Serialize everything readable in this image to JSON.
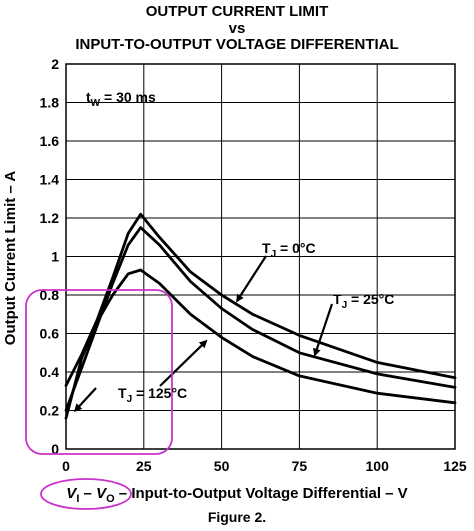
{
  "title": {
    "line1": "OUTPUT CURRENT LIMIT",
    "line2": "vs",
    "line3": "INPUT-TO-OUTPUT VOLTAGE DIFFERENTIAL"
  },
  "caption": "Figure 2.",
  "chart_data": {
    "type": "line",
    "xlabel": {
      "main_italic": "V",
      "sub_i": "I",
      "sep": " – ",
      "main_italic2": "V",
      "sub_o": "O",
      "rest": " – Input-to-Output Voltage Differential – V"
    },
    "ylabel": "Output Current Limit – A",
    "xlim": [
      0,
      125
    ],
    "ylim": [
      0,
      2
    ],
    "xticks": [
      "0",
      "25",
      "50",
      "75",
      "100",
      "125"
    ],
    "xtick_values": [
      0,
      25,
      50,
      75,
      100,
      125
    ],
    "yticks": [
      "0",
      "0.2",
      "0.4",
      "0.6",
      "0.8",
      "1",
      "1.2",
      "1.4",
      "1.6",
      "1.8",
      "2"
    ],
    "ytick_values": [
      0,
      0.2,
      0.4,
      0.6,
      0.8,
      1,
      1.2,
      1.4,
      1.6,
      1.8,
      2
    ],
    "grid": true,
    "condition": {
      "t": "t",
      "sub": "W",
      "rest": " = 30 ms"
    },
    "series": [
      {
        "name": "TJ = 0°C",
        "label": {
          "t": "T",
          "sub": "J",
          "rest": " = 0°C"
        },
        "x": [
          0,
          5,
          10,
          15,
          20,
          24,
          30,
          40,
          50,
          60,
          75,
          100,
          125
        ],
        "y": [
          0.33,
          0.49,
          0.67,
          0.89,
          1.12,
          1.22,
          1.1,
          0.92,
          0.8,
          0.7,
          0.59,
          0.45,
          0.37
        ]
      },
      {
        "name": "TJ = 25°C",
        "label": {
          "t": "T",
          "sub": "J",
          "rest": " = 25°C"
        },
        "x": [
          0,
          5,
          10,
          15,
          20,
          24,
          30,
          40,
          50,
          60,
          75,
          100,
          125
        ],
        "y": [
          0.2,
          0.42,
          0.64,
          0.86,
          1.06,
          1.15,
          1.06,
          0.87,
          0.73,
          0.62,
          0.5,
          0.39,
          0.32
        ]
      },
      {
        "name": "TJ = 125°C",
        "label": {
          "t": "T",
          "sub": "J",
          "rest": " = 125°C"
        },
        "x": [
          0,
          5,
          10,
          15,
          20,
          24,
          30,
          40,
          50,
          60,
          75,
          100,
          125
        ],
        "y": [
          0.16,
          0.47,
          0.66,
          0.8,
          0.91,
          0.93,
          0.86,
          0.7,
          0.58,
          0.48,
          0.38,
          0.29,
          0.24
        ]
      }
    ]
  },
  "highlight_color": "#cc33cc"
}
